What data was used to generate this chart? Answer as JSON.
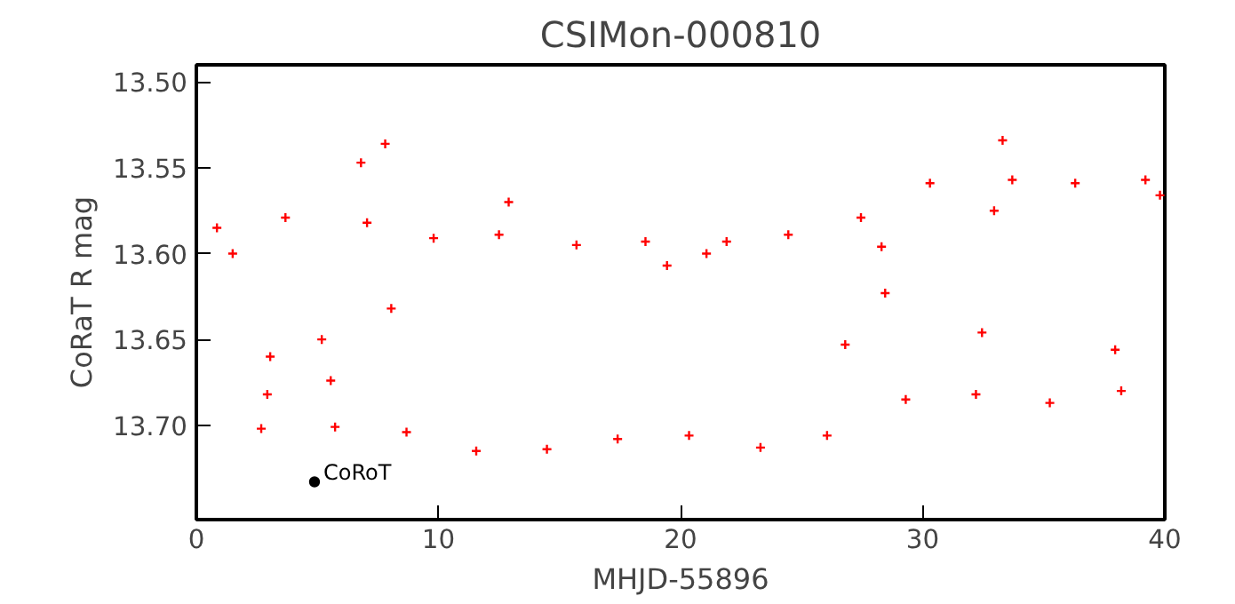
{
  "chart_data": {
    "type": "scatter",
    "title": "CSIMon-000810",
    "xlabel": "MHJD-55896",
    "ylabel": "CoRaT R mag",
    "xlim": [
      0,
      40
    ],
    "ylim": [
      13.755,
      13.49
    ],
    "xticks": [
      0,
      10,
      20,
      30,
      40
    ],
    "yticks": [
      {
        "value": 13.5,
        "label": "13.50"
      },
      {
        "value": 13.55,
        "label": "13.55"
      },
      {
        "value": 13.6,
        "label": "13.60"
      },
      {
        "value": 13.65,
        "label": "13.65"
      },
      {
        "value": 13.7,
        "label": "13.70"
      }
    ],
    "grid": false,
    "marker": "cross",
    "series": [
      {
        "color": "#ff0000",
        "x": [
          0.85,
          1.5,
          2.68,
          2.93,
          3.05,
          3.68,
          5.18,
          5.55,
          5.73,
          6.8,
          7.05,
          7.8,
          8.05,
          8.68,
          9.8,
          11.56,
          12.5,
          12.9,
          14.48,
          15.7,
          17.4,
          18.55,
          19.44,
          20.35,
          21.07,
          21.9,
          23.3,
          24.45,
          26.05,
          26.8,
          27.45,
          28.3,
          28.45,
          29.3,
          30.3,
          32.2,
          32.45,
          32.95,
          33.3,
          33.7,
          35.25,
          36.3,
          37.95,
          38.2,
          39.2,
          39.8
        ],
        "values": [
          13.585,
          13.6,
          13.702,
          13.682,
          13.66,
          13.579,
          13.65,
          13.674,
          13.701,
          13.547,
          13.582,
          13.536,
          13.632,
          13.704,
          13.591,
          13.715,
          13.589,
          13.57,
          13.714,
          13.595,
          13.708,
          13.593,
          13.607,
          13.706,
          13.6,
          13.593,
          13.713,
          13.589,
          13.706,
          13.653,
          13.579,
          13.596,
          13.623,
          13.685,
          13.559,
          13.682,
          13.646,
          13.575,
          13.534,
          13.557,
          13.687,
          13.559,
          13.656,
          13.68,
          13.557,
          13.566
        ]
      },
      {
        "name": "CoRoT",
        "color": "#000000",
        "marker": "circle",
        "x": [
          4.88
        ],
        "values": [
          13.733
        ]
      }
    ]
  }
}
